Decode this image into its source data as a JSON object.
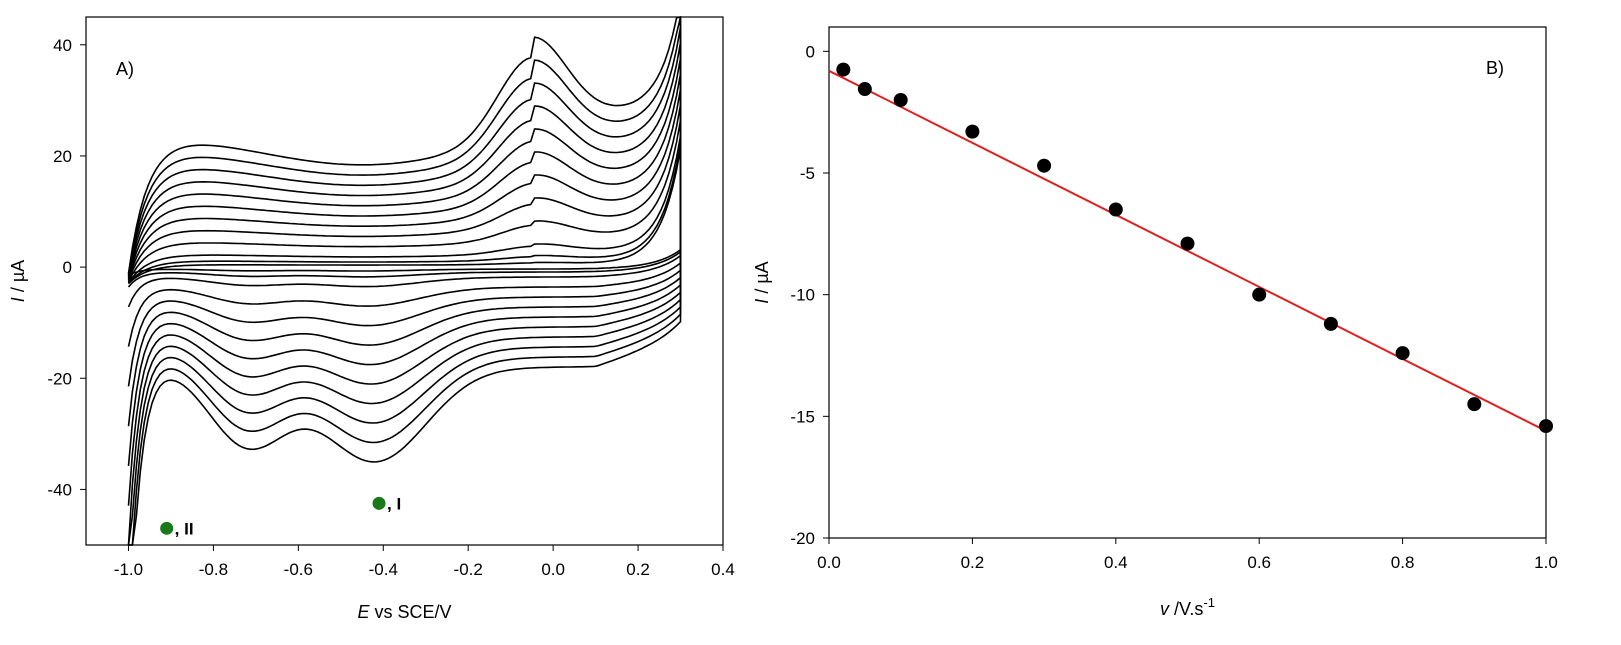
{
  "chart_data": [
    {
      "type": "line",
      "panel_label": "A)",
      "xlabel_italic": "E",
      "xlabel_rest": " vs SCE/V",
      "ylabel_italic": "I",
      "ylabel_rest": " / µA",
      "xlim": [
        -1.1,
        0.4
      ],
      "ylim": [
        -50,
        45
      ],
      "xticks": [
        -1.0,
        -0.8,
        -0.6,
        -0.4,
        -0.2,
        0.0,
        0.2,
        0.4
      ],
      "xtick_labels": [
        "-1.0",
        "-0.8",
        "-0.6",
        "-0.4",
        "-0.2",
        "0.0",
        "0.2",
        "0.4"
      ],
      "yticks": [
        -40,
        -20,
        0,
        20,
        40
      ],
      "ytick_labels": [
        "-40",
        "-20",
        "0",
        "20",
        "40"
      ],
      "grid": false,
      "scan_range": [
        -1.0,
        0.3
      ],
      "series_scale_factors": [
        1.0,
        0.9,
        0.8,
        0.7,
        0.6,
        0.5,
        0.4,
        0.3,
        0.2,
        0.1,
        0.05,
        0.02
      ],
      "annotations": [
        {
          "text": ", I",
          "x": -0.41,
          "y": -42.5,
          "marker_color": "#1a7a1a"
        },
        {
          "text": ", II",
          "x": -0.91,
          "y": -47,
          "marker_color": "#1a7a1a"
        }
      ],
      "line_color": "#000000"
    },
    {
      "type": "scatter",
      "panel_label": "B)",
      "xlabel_italic": "v",
      "xlabel_rest": " /V.s",
      "xlabel_sup": "-1",
      "ylabel_italic": "I",
      "ylabel_rest": " / µA",
      "xlim": [
        0.0,
        1.0
      ],
      "ylim": [
        -20,
        1
      ],
      "xticks": [
        0.0,
        0.2,
        0.4,
        0.6,
        0.8,
        1.0
      ],
      "xtick_labels": [
        "0.0",
        "0.2",
        "0.4",
        "0.6",
        "0.8",
        "1.0"
      ],
      "yticks": [
        -20,
        -15,
        -10,
        -5,
        0
      ],
      "ytick_labels": [
        "-20",
        "-15",
        "-10",
        "-5",
        "0"
      ],
      "grid": false,
      "x": [
        0.02,
        0.05,
        0.1,
        0.2,
        0.3,
        0.4,
        0.5,
        0.6,
        0.7,
        0.8,
        0.9,
        1.0
      ],
      "y": [
        -0.75,
        -1.55,
        -2.0,
        -3.3,
        -4.7,
        -6.5,
        -7.9,
        -10.0,
        -11.2,
        -12.4,
        -14.5,
        -15.4
      ],
      "fit_line": {
        "x": [
          0.0,
          1.0
        ],
        "y": [
          -0.8,
          -15.6
        ],
        "color": "#e02020"
      },
      "marker_color": "#000000"
    }
  ]
}
